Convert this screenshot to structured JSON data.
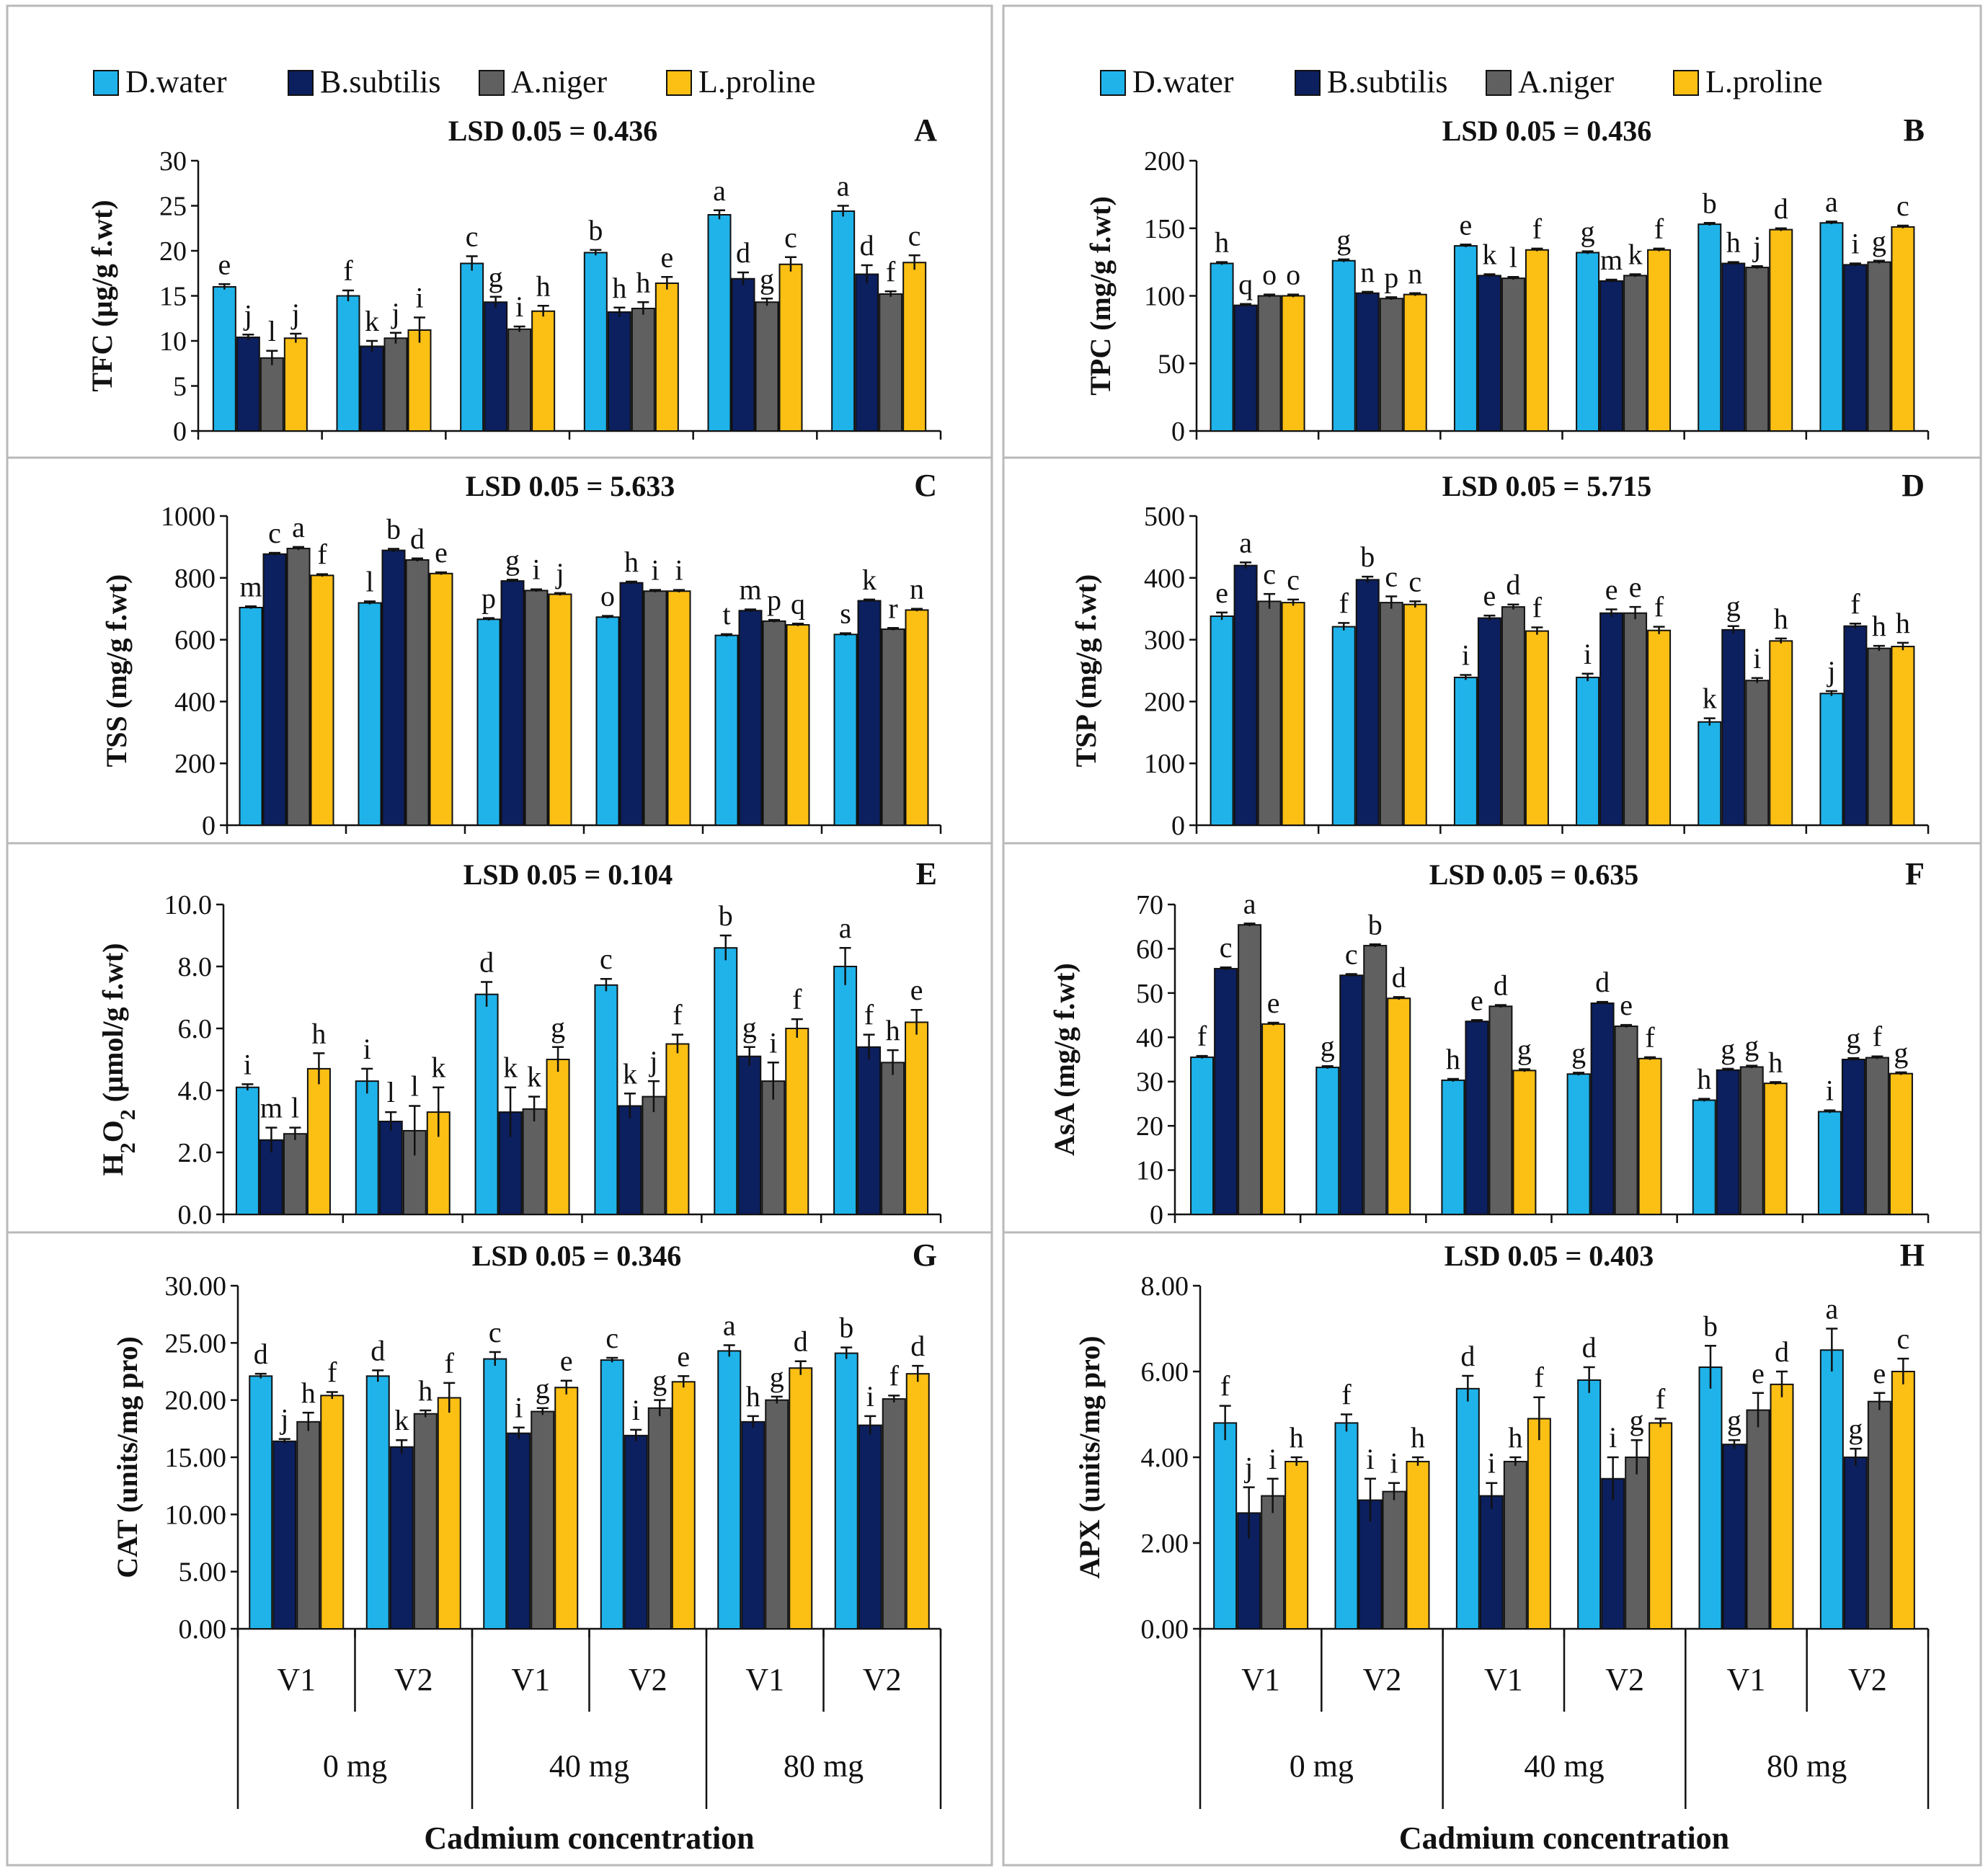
{
  "colors": {
    "D.water": "#1fb3ea",
    "B.subtilis": "#0c1f5e",
    "A.niger": "#606060",
    "L.proline": "#fcbf14",
    "frame": "#b9b9b9",
    "axis": "#111111"
  },
  "legend": [
    "D.water",
    "B.subtilis",
    "A.niger",
    "L.proline"
  ],
  "x_axis": {
    "varieties": [
      "V1",
      "V2",
      "V1",
      "V2",
      "V1",
      "V2"
    ],
    "cadmium": [
      "0 mg",
      "40 mg",
      "80 mg"
    ],
    "title": "Cadmium concentration"
  },
  "chart_data": [
    {
      "panel": "A",
      "type": "bar",
      "lsd": "LSD 0.05 = 0.436",
      "ylabel": "TFC (µg/g f.wt)",
      "ylim": [
        0,
        30
      ],
      "yticks": [
        "0",
        "5",
        "10",
        "15",
        "20",
        "25",
        "30"
      ],
      "categories": [
        "V1 0 mg",
        "V2 0 mg",
        "V1 40 mg",
        "V2 40 mg",
        "V1 80 mg",
        "V2 80 mg"
      ],
      "series": [
        {
          "name": "D.water",
          "values": [
            16.0,
            15.0,
            18.6,
            19.8,
            24.0,
            24.4
          ],
          "errors": [
            0.3,
            0.6,
            0.8,
            0.3,
            0.5,
            0.6
          ],
          "letters": [
            "e",
            "f",
            "c",
            "b",
            "a",
            "a"
          ]
        },
        {
          "name": "B.subtilis",
          "values": [
            10.4,
            9.4,
            14.3,
            13.2,
            16.9,
            17.4
          ],
          "errors": [
            0.3,
            0.6,
            0.6,
            0.5,
            0.7,
            1.0
          ],
          "letters": [
            "j",
            "k",
            "g",
            "h",
            "d",
            "d"
          ]
        },
        {
          "name": "A.niger",
          "values": [
            8.1,
            10.3,
            11.3,
            13.6,
            14.3,
            15.2
          ],
          "errors": [
            0.8,
            0.6,
            0.3,
            0.7,
            0.4,
            0.3
          ],
          "letters": [
            "l",
            "j",
            "i",
            "h",
            "g",
            "f"
          ]
        },
        {
          "name": "L.proline",
          "values": [
            10.3,
            11.2,
            13.3,
            16.4,
            18.5,
            18.7
          ],
          "errors": [
            0.5,
            1.4,
            0.6,
            0.7,
            0.8,
            0.8
          ],
          "letters": [
            "j",
            "i",
            "h",
            "e",
            "c",
            "c"
          ]
        }
      ]
    },
    {
      "panel": "B",
      "type": "bar",
      "lsd": "LSD 0.05 = 0.436",
      "ylabel": "TPC (mg/g f.wt)",
      "ylim": [
        0,
        200
      ],
      "yticks": [
        "0",
        "50",
        "100",
        "150",
        "200"
      ],
      "categories": [
        "V1 0 mg",
        "V2 0 mg",
        "V1 40 mg",
        "V2 40 mg",
        "V1 80 mg",
        "V2 80 mg"
      ],
      "series": [
        {
          "name": "D.water",
          "values": [
            124,
            126,
            137,
            132,
            153,
            154
          ],
          "errors": [
            1,
            1,
            1,
            1,
            1,
            1
          ],
          "letters": [
            "h",
            "g",
            "e",
            "g",
            "b",
            "a"
          ]
        },
        {
          "name": "B.subtilis",
          "values": [
            93,
            102,
            115,
            111,
            124,
            123
          ],
          "errors": [
            1,
            1,
            1,
            1,
            1,
            1
          ],
          "letters": [
            "q",
            "n",
            "k",
            "m",
            "h",
            "i"
          ]
        },
        {
          "name": "A.niger",
          "values": [
            100,
            98,
            113,
            115,
            121,
            125
          ],
          "errors": [
            1,
            1,
            1,
            1,
            1,
            1
          ],
          "letters": [
            "o",
            "p",
            "l",
            "k",
            "j",
            "g"
          ]
        },
        {
          "name": "L.proline",
          "values": [
            100,
            101,
            134,
            134,
            149,
            151
          ],
          "errors": [
            1,
            1,
            1,
            1,
            1,
            1
          ],
          "letters": [
            "o",
            "n",
            "f",
            "f",
            "d",
            "c"
          ]
        }
      ]
    },
    {
      "panel": "C",
      "type": "bar",
      "lsd": "LSD 0.05 = 5.633",
      "ylabel": "TSS (mg/g f.wt)",
      "ylim": [
        0,
        1000
      ],
      "yticks": [
        "0",
        "200",
        "400",
        "600",
        "800",
        "1000"
      ],
      "categories": [
        "V1 0 mg",
        "V2 0 mg",
        "V1 40 mg",
        "V2 40 mg",
        "V1 80 mg",
        "V2 80 mg"
      ],
      "series": [
        {
          "name": "D.water",
          "values": [
            704,
            719,
            666,
            673,
            614,
            617
          ],
          "errors": [
            4,
            5,
            4,
            4,
            4,
            4
          ],
          "letters": [
            "m",
            "l",
            "p",
            "o",
            "t",
            "s"
          ]
        },
        {
          "name": "B.subtilis",
          "values": [
            877,
            889,
            790,
            784,
            694,
            726
          ],
          "errors": [
            4,
            5,
            4,
            4,
            4,
            4
          ],
          "letters": [
            "c",
            "b",
            "g",
            "h",
            "m",
            "k"
          ]
        },
        {
          "name": "A.niger",
          "values": [
            895,
            858,
            759,
            757,
            660,
            634
          ],
          "errors": [
            5,
            5,
            4,
            4,
            4,
            4
          ],
          "letters": [
            "a",
            "d",
            "i",
            "i",
            "p",
            "r"
          ]
        },
        {
          "name": "L.proline",
          "values": [
            808,
            814,
            747,
            757,
            648,
            696
          ],
          "errors": [
            4,
            4,
            4,
            4,
            4,
            4
          ],
          "letters": [
            "f",
            "e",
            "j",
            "i",
            "q",
            "n"
          ]
        }
      ]
    },
    {
      "panel": "D",
      "type": "bar",
      "lsd": "LSD 0.05 = 5.715",
      "ylabel": "TSP (mg/g f.wt)",
      "ylim": [
        0,
        500
      ],
      "yticks": [
        "0",
        "100",
        "200",
        "300",
        "400",
        "500"
      ],
      "categories": [
        "V1 0 mg",
        "V2 0 mg",
        "V1 40 mg",
        "V2 40 mg",
        "V1 80 mg",
        "V2 80 mg"
      ],
      "series": [
        {
          "name": "D.water",
          "values": [
            338,
            321,
            239,
            239,
            167,
            213
          ],
          "errors": [
            6,
            6,
            4,
            6,
            6,
            4
          ],
          "letters": [
            "e",
            "f",
            "i",
            "i",
            "k",
            "j"
          ]
        },
        {
          "name": "B.subtilis",
          "values": [
            420,
            397,
            335,
            343,
            316,
            322
          ],
          "errors": [
            5,
            5,
            4,
            6,
            6,
            4
          ],
          "letters": [
            "a",
            "b",
            "e",
            "e",
            "g",
            "f"
          ]
        },
        {
          "name": "A.niger",
          "values": [
            362,
            360,
            353,
            343,
            234,
            286
          ],
          "errors": [
            12,
            10,
            4,
            10,
            4,
            4
          ],
          "letters": [
            "c",
            "c",
            "d",
            "e",
            "i",
            "h"
          ]
        },
        {
          "name": "L.proline",
          "values": [
            360,
            357,
            314,
            315,
            298,
            289
          ],
          "errors": [
            5,
            5,
            6,
            6,
            4,
            6
          ],
          "letters": [
            "c",
            "c",
            "f",
            "f",
            "h",
            "h"
          ]
        }
      ]
    },
    {
      "panel": "E",
      "type": "bar",
      "lsd": "LSD 0.05 = 0.104",
      "ylabel": "H2O2 (µmol/g f.wt)",
      "ylim": [
        0,
        10
      ],
      "yticks": [
        "0.0",
        "2.0",
        "4.0",
        "6.0",
        "8.0",
        "10.0"
      ],
      "categories": [
        "V1 0 mg",
        "V2 0 mg",
        "V1 40 mg",
        "V2 40 mg",
        "V1 80 mg",
        "V2 80 mg"
      ],
      "series": [
        {
          "name": "D.water",
          "values": [
            4.1,
            4.3,
            7.1,
            7.4,
            8.6,
            8.0
          ],
          "errors": [
            0.1,
            0.4,
            0.4,
            0.2,
            0.4,
            0.6
          ],
          "letters": [
            "i",
            "i",
            "d",
            "c",
            "b",
            "a"
          ]
        },
        {
          "name": "B.subtilis",
          "values": [
            2.4,
            3.0,
            3.3,
            3.5,
            5.1,
            5.4
          ],
          "errors": [
            0.4,
            0.3,
            0.8,
            0.4,
            0.3,
            0.4
          ],
          "letters": [
            "m",
            "l",
            "k",
            "k",
            "g",
            "f"
          ]
        },
        {
          "name": "A.niger",
          "values": [
            2.6,
            2.7,
            3.4,
            3.8,
            4.3,
            4.9
          ],
          "errors": [
            0.2,
            0.8,
            0.4,
            0.5,
            0.6,
            0.4
          ],
          "letters": [
            "l",
            "l",
            "k",
            "j",
            "i",
            "h"
          ]
        },
        {
          "name": "L.proline",
          "values": [
            4.7,
            3.3,
            5.0,
            5.5,
            6.0,
            6.2
          ],
          "errors": [
            0.5,
            0.8,
            0.4,
            0.3,
            0.3,
            0.4
          ],
          "letters": [
            "h",
            "k",
            "g",
            "f",
            "f",
            "e"
          ]
        }
      ]
    },
    {
      "panel": "F",
      "type": "bar",
      "lsd": "LSD 0.05 = 0.635",
      "ylabel": "AsA (mg/g f.wt)",
      "ylim": [
        0,
        70
      ],
      "yticks": [
        "0",
        "10",
        "20",
        "30",
        "40",
        "50",
        "60",
        "70"
      ],
      "categories": [
        "V1 0 mg",
        "V2 0 mg",
        "V1 40 mg",
        "V2 40 mg",
        "V1 80 mg",
        "V2 80 mg"
      ],
      "series": [
        {
          "name": "D.water",
          "values": [
            35.5,
            33.2,
            30.3,
            31.7,
            25.8,
            23.2
          ],
          "errors": [
            0.3,
            0.3,
            0.3,
            0.3,
            0.3,
            0.3
          ],
          "letters": [
            "f",
            "g",
            "h",
            "g",
            "h",
            "i"
          ]
        },
        {
          "name": "B.subtilis",
          "values": [
            55.5,
            54.0,
            43.6,
            47.7,
            32.6,
            35.0
          ],
          "errors": [
            0.3,
            0.3,
            0.3,
            0.3,
            0.3,
            0.3
          ],
          "letters": [
            "c",
            "c",
            "e",
            "d",
            "g",
            "g"
          ]
        },
        {
          "name": "A.niger",
          "values": [
            65.4,
            60.7,
            47.0,
            42.5,
            33.3,
            35.4
          ],
          "errors": [
            0.3,
            0.3,
            0.3,
            0.3,
            0.3,
            0.3
          ],
          "letters": [
            "a",
            "b",
            "d",
            "e",
            "g",
            "f"
          ]
        },
        {
          "name": "L.proline",
          "values": [
            43.0,
            48.8,
            32.5,
            35.2,
            29.6,
            31.8
          ],
          "errors": [
            0.3,
            0.3,
            0.3,
            0.3,
            0.3,
            0.3
          ],
          "letters": [
            "e",
            "d",
            "g",
            "f",
            "h",
            "g"
          ]
        }
      ]
    },
    {
      "panel": "G",
      "type": "bar",
      "lsd": "LSD 0.05 = 0.346",
      "ylabel": "CAT (units/mg pro)",
      "ylim": [
        0,
        30
      ],
      "yticks": [
        "0.00",
        "5.00",
        "10.00",
        "15.00",
        "20.00",
        "25.00",
        "30.00"
      ],
      "categories": [
        "V1 0 mg",
        "V2 0 mg",
        "V1 40 mg",
        "V2 40 mg",
        "V1 80 mg",
        "V2 80 mg"
      ],
      "series": [
        {
          "name": "D.water",
          "values": [
            22.1,
            22.1,
            23.6,
            23.5,
            24.3,
            24.1
          ],
          "errors": [
            0.2,
            0.5,
            0.6,
            0.2,
            0.5,
            0.5
          ],
          "letters": [
            "d",
            "d",
            "c",
            "c",
            "a",
            "b"
          ]
        },
        {
          "name": "B.subtilis",
          "values": [
            16.4,
            15.9,
            17.1,
            16.9,
            18.1,
            17.8
          ],
          "errors": [
            0.2,
            0.6,
            0.5,
            0.5,
            0.5,
            0.8
          ],
          "letters": [
            "j",
            "k",
            "i",
            "i",
            "h",
            "i"
          ]
        },
        {
          "name": "A.niger",
          "values": [
            18.1,
            18.8,
            19.0,
            19.3,
            20.0,
            20.1
          ],
          "errors": [
            0.8,
            0.3,
            0.3,
            0.7,
            0.3,
            0.3
          ],
          "letters": [
            "h",
            "h",
            "g",
            "g",
            "g",
            "f"
          ]
        },
        {
          "name": "L.proline",
          "values": [
            20.4,
            20.2,
            21.1,
            21.6,
            22.8,
            22.3
          ],
          "errors": [
            0.3,
            1.3,
            0.6,
            0.5,
            0.6,
            0.7
          ],
          "letters": [
            "f",
            "f",
            "e",
            "e",
            "d",
            "d"
          ]
        }
      ]
    },
    {
      "panel": "H",
      "type": "bar",
      "lsd": "LSD 0.05 = 0.403",
      "ylabel": "APX (units/mg pro)",
      "ylim": [
        0,
        8
      ],
      "yticks": [
        "0.00",
        "2.00",
        "4.00",
        "6.00",
        "8.00"
      ],
      "categories": [
        "V1 0 mg",
        "V2 0 mg",
        "V1 40 mg",
        "V2 40 mg",
        "V1 80 mg",
        "V2 80 mg"
      ],
      "series": [
        {
          "name": "D.water",
          "values": [
            4.8,
            4.8,
            5.6,
            5.8,
            6.1,
            6.5
          ],
          "errors": [
            0.4,
            0.2,
            0.3,
            0.3,
            0.5,
            0.5
          ],
          "letters": [
            "f",
            "f",
            "d",
            "d",
            "b",
            "a"
          ]
        },
        {
          "name": "B.subtilis",
          "values": [
            2.7,
            3.0,
            3.1,
            3.5,
            4.3,
            4.0
          ],
          "errors": [
            0.6,
            0.5,
            0.3,
            0.5,
            0.1,
            0.2
          ],
          "letters": [
            "j",
            "i",
            "i",
            "i",
            "g",
            "g"
          ]
        },
        {
          "name": "A.niger",
          "values": [
            3.1,
            3.2,
            3.9,
            4.0,
            5.1,
            5.3
          ],
          "errors": [
            0.4,
            0.2,
            0.1,
            0.4,
            0.4,
            0.2
          ],
          "letters": [
            "i",
            "i",
            "h",
            "g",
            "e",
            "e"
          ]
        },
        {
          "name": "L.proline",
          "values": [
            3.9,
            3.9,
            4.9,
            4.8,
            5.7,
            6.0
          ],
          "errors": [
            0.1,
            0.1,
            0.5,
            0.1,
            0.3,
            0.3
          ],
          "letters": [
            "h",
            "h",
            "f",
            "f",
            "d",
            "c"
          ]
        }
      ]
    }
  ]
}
